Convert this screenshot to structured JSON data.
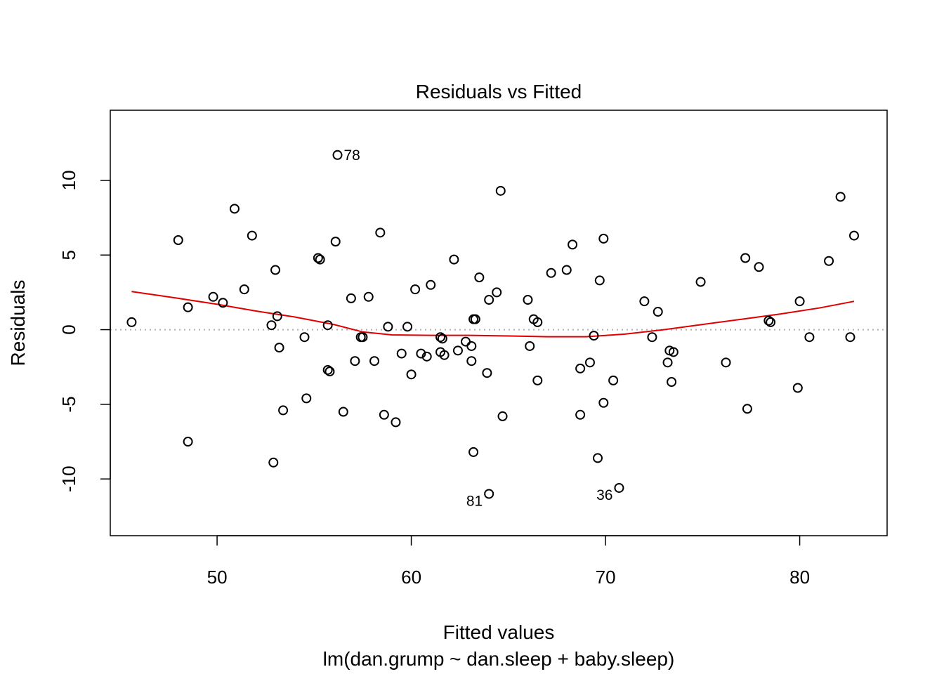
{
  "chart_data": {
    "type": "scatter",
    "title": "Residuals vs Fitted",
    "xlabel": "Fitted values",
    "subtitle": "lm(dan.grump ~ dan.sleep + baby.sleep)",
    "ylabel": "Residuals",
    "xlim": [
      44.5,
      84.5
    ],
    "ylim": [
      -13.8,
      14.7
    ],
    "x_ticks": [
      50,
      60,
      70,
      80
    ],
    "y_ticks": [
      -10,
      -5,
      0,
      5,
      10
    ],
    "reference_line": {
      "y": 0,
      "style": "dotted",
      "color": "#b0b0b0"
    },
    "grid": false,
    "legend": "none",
    "colors": {
      "points": "#000000",
      "smooth": "#e00000"
    },
    "points": [
      {
        "x": 45.6,
        "y": 0.5
      },
      {
        "x": 48.0,
        "y": 6.0
      },
      {
        "x": 48.5,
        "y": 1.5
      },
      {
        "x": 48.5,
        "y": -7.5
      },
      {
        "x": 49.8,
        "y": 2.2
      },
      {
        "x": 50.3,
        "y": 1.8
      },
      {
        "x": 50.9,
        "y": 8.1
      },
      {
        "x": 51.4,
        "y": 2.7
      },
      {
        "x": 51.8,
        "y": 6.3
      },
      {
        "x": 52.8,
        "y": 0.3
      },
      {
        "x": 52.9,
        "y": -8.9
      },
      {
        "x": 53.0,
        "y": 4.0
      },
      {
        "x": 53.1,
        "y": 0.9
      },
      {
        "x": 53.2,
        "y": -1.2
      },
      {
        "x": 53.4,
        "y": -5.4
      },
      {
        "x": 54.5,
        "y": -0.5
      },
      {
        "x": 54.6,
        "y": -4.6
      },
      {
        "x": 55.2,
        "y": 4.8
      },
      {
        "x": 55.3,
        "y": 4.7
      },
      {
        "x": 55.7,
        "y": 0.3
      },
      {
        "x": 55.7,
        "y": -2.7
      },
      {
        "x": 55.8,
        "y": -2.8
      },
      {
        "x": 56.1,
        "y": 5.9
      },
      {
        "x": 56.2,
        "y": 11.7
      },
      {
        "x": 56.5,
        "y": -5.5
      },
      {
        "x": 56.9,
        "y": 2.1
      },
      {
        "x": 57.1,
        "y": -2.1
      },
      {
        "x": 57.4,
        "y": -0.5
      },
      {
        "x": 57.5,
        "y": -0.5
      },
      {
        "x": 57.8,
        "y": 2.2
      },
      {
        "x": 58.1,
        "y": -2.1
      },
      {
        "x": 58.4,
        "y": 6.5
      },
      {
        "x": 58.6,
        "y": -5.7
      },
      {
        "x": 58.8,
        "y": 0.2
      },
      {
        "x": 59.2,
        "y": -6.2
      },
      {
        "x": 59.5,
        "y": -1.6
      },
      {
        "x": 59.8,
        "y": 0.2
      },
      {
        "x": 60.0,
        "y": -3.0
      },
      {
        "x": 60.2,
        "y": 2.7
      },
      {
        "x": 60.5,
        "y": -1.6
      },
      {
        "x": 60.8,
        "y": -1.8
      },
      {
        "x": 61.0,
        "y": 3.0
      },
      {
        "x": 61.5,
        "y": -0.5
      },
      {
        "x": 61.5,
        "y": -1.5
      },
      {
        "x": 61.6,
        "y": -0.6
      },
      {
        "x": 61.7,
        "y": -1.7
      },
      {
        "x": 62.2,
        "y": 4.7
      },
      {
        "x": 62.4,
        "y": -1.4
      },
      {
        "x": 62.8,
        "y": -0.8
      },
      {
        "x": 63.1,
        "y": -1.1
      },
      {
        "x": 63.1,
        "y": -2.1
      },
      {
        "x": 63.2,
        "y": -8.2
      },
      {
        "x": 63.2,
        "y": 0.7
      },
      {
        "x": 63.3,
        "y": 0.7
      },
      {
        "x": 63.5,
        "y": 3.5
      },
      {
        "x": 63.9,
        "y": -2.9
      },
      {
        "x": 64.0,
        "y": 2.0
      },
      {
        "x": 64.0,
        "y": -11.0
      },
      {
        "x": 64.4,
        "y": 2.5
      },
      {
        "x": 64.6,
        "y": 9.3
      },
      {
        "x": 64.7,
        "y": -5.8
      },
      {
        "x": 66.0,
        "y": 2.0
      },
      {
        "x": 66.1,
        "y": -1.1
      },
      {
        "x": 66.3,
        "y": 0.7
      },
      {
        "x": 66.5,
        "y": -3.4
      },
      {
        "x": 66.5,
        "y": 0.5
      },
      {
        "x": 67.2,
        "y": 3.8
      },
      {
        "x": 68.0,
        "y": 4.0
      },
      {
        "x": 68.3,
        "y": 5.7
      },
      {
        "x": 68.7,
        "y": -2.6
      },
      {
        "x": 68.7,
        "y": -5.7
      },
      {
        "x": 69.2,
        "y": -2.2
      },
      {
        "x": 69.4,
        "y": -0.4
      },
      {
        "x": 69.6,
        "y": -8.6
      },
      {
        "x": 69.7,
        "y": 3.3
      },
      {
        "x": 69.9,
        "y": 6.1
      },
      {
        "x": 69.9,
        "y": -4.9
      },
      {
        "x": 70.4,
        "y": -3.4
      },
      {
        "x": 70.7,
        "y": -10.6
      },
      {
        "x": 72.0,
        "y": 1.9
      },
      {
        "x": 72.4,
        "y": -0.5
      },
      {
        "x": 72.7,
        "y": 1.2
      },
      {
        "x": 73.2,
        "y": -2.2
      },
      {
        "x": 73.3,
        "y": -1.4
      },
      {
        "x": 73.4,
        "y": -3.5
      },
      {
        "x": 73.5,
        "y": -1.5
      },
      {
        "x": 74.9,
        "y": 3.2
      },
      {
        "x": 76.2,
        "y": -2.2
      },
      {
        "x": 77.2,
        "y": 4.8
      },
      {
        "x": 77.3,
        "y": -5.3
      },
      {
        "x": 77.9,
        "y": 4.2
      },
      {
        "x": 78.4,
        "y": 0.6
      },
      {
        "x": 78.5,
        "y": 0.5
      },
      {
        "x": 79.9,
        "y": -3.9
      },
      {
        "x": 80.0,
        "y": 1.9
      },
      {
        "x": 80.5,
        "y": -0.5
      },
      {
        "x": 81.5,
        "y": 4.6
      },
      {
        "x": 82.1,
        "y": 8.9
      },
      {
        "x": 82.6,
        "y": -0.5
      },
      {
        "x": 82.8,
        "y": 6.3
      }
    ],
    "point_labels": [
      {
        "text": "78",
        "x": 56.2,
        "y": 11.7,
        "pos": "right"
      },
      {
        "text": "81",
        "x": 64.0,
        "y": -11.0,
        "pos": "left"
      },
      {
        "text": "36",
        "x": 70.7,
        "y": -10.6,
        "pos": "left"
      }
    ],
    "smooth_line": {
      "x": [
        45.6,
        48,
        50,
        52,
        54,
        56,
        57.5,
        59,
        61,
        63,
        65,
        67,
        69,
        71,
        73,
        75,
        77,
        79,
        81,
        82.8
      ],
      "y": [
        2.55,
        2.1,
        1.7,
        1.25,
        0.85,
        0.35,
        -0.15,
        -0.35,
        -0.38,
        -0.38,
        -0.42,
        -0.47,
        -0.47,
        -0.3,
        0.0,
        0.35,
        0.7,
        1.05,
        1.45,
        1.9
      ]
    }
  }
}
